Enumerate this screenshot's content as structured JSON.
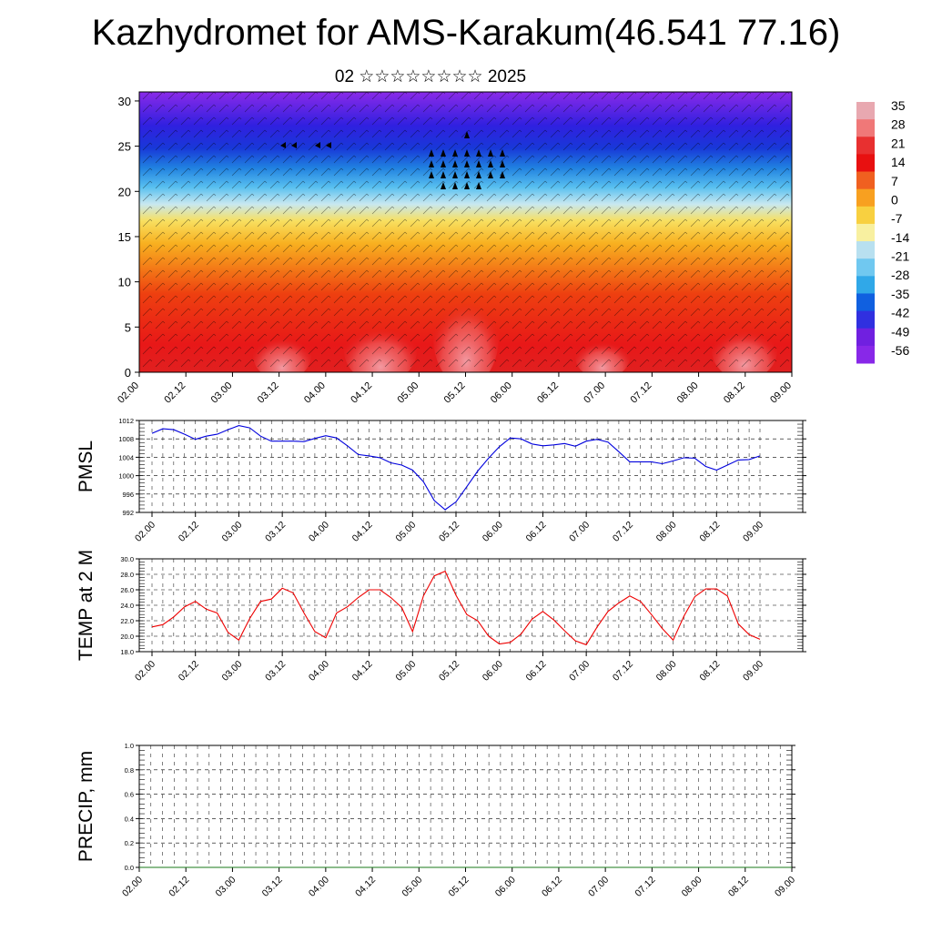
{
  "title": "Kazhydromet for AMS-Karakum(46.541 77.16)",
  "subtitle": "02 ☆☆☆☆☆☆☆☆ 2025",
  "colorbar": {
    "labels": [
      "35",
      "28",
      "21",
      "14",
      "7",
      "0",
      "-7",
      "-14",
      "-21",
      "-28",
      "-35",
      "-42",
      "-49",
      "-56"
    ],
    "colors": [
      "#e8a8b0",
      "#f07878",
      "#e83030",
      "#e81010",
      "#f06020",
      "#f8a020",
      "#f8d040",
      "#f8f0a0",
      "#b8e0f0",
      "#70c8f0",
      "#30a8e8",
      "#1060e0",
      "#3030e0",
      "#7020e0",
      "#8828e8"
    ]
  },
  "chart_data": [
    {
      "type": "heatmap",
      "name": "cross-section",
      "x_tick_labels": [
        "02.00",
        "02.12",
        "03.00",
        "03.12",
        "04.00",
        "04.12",
        "05.00",
        "05.12",
        "06.00",
        "06.12",
        "07.00",
        "07.12",
        "08.00",
        "08.12",
        "09.00"
      ],
      "y_tick_labels": [
        "0",
        "5",
        "10",
        "15",
        "20",
        "25",
        "30"
      ],
      "ylim": [
        0,
        31
      ],
      "field_legend_range": [
        -56,
        35
      ],
      "vectors": "wind barbs overlay"
    },
    {
      "type": "line",
      "name": "pmsl",
      "ylabel": "PMSL",
      "y_tick_labels": [
        "992",
        "996",
        "1000",
        "1004",
        "1008",
        "1012"
      ],
      "ylim": [
        992,
        1012
      ],
      "x_tick_labels": [
        "02.00",
        "02.12",
        "03.00",
        "03.12",
        "04.00",
        "04.12",
        "05.00",
        "05.12",
        "06.00",
        "06.12",
        "07.00",
        "07.12",
        "08.00",
        "08.12",
        "09.00"
      ],
      "color": "#0000dd",
      "values": [
        1009.2,
        1010.2,
        1010.0,
        1009.0,
        1007.9,
        1008.6,
        1009.0,
        1010.0,
        1010.9,
        1010.4,
        1008.6,
        1007.5,
        1007.5,
        1007.5,
        1007.4,
        1008.1,
        1008.7,
        1008.2,
        1006.5,
        1004.6,
        1004.3,
        1003.9,
        1002.8,
        1002.3,
        1001.2,
        998.7,
        994.6,
        992.6,
        994.3,
        997.6,
        1001.0,
        1003.8,
        1006.3,
        1008.2,
        1008.0,
        1006.9,
        1006.5,
        1006.7,
        1007.0,
        1006.4,
        1007.5,
        1007.9,
        1007.3,
        1005.2,
        1003.0,
        1003.0,
        1003.0,
        1002.6,
        1003.2,
        1003.9,
        1003.8,
        1002.0,
        1001.2,
        1002.3,
        1003.4,
        1003.5,
        1004.3
      ]
    },
    {
      "type": "line",
      "name": "temp2m",
      "ylabel": "TEMP at 2 M",
      "y_tick_labels": [
        "18.0",
        "20.0",
        "22.0",
        "24.0",
        "26.0",
        "28.0",
        "30.0"
      ],
      "ylim": [
        18,
        30
      ],
      "x_tick_labels": [
        "02.00",
        "02.12",
        "03.00",
        "03.12",
        "04.00",
        "04.12",
        "05.00",
        "05.12",
        "06.00",
        "06.12",
        "07.00",
        "07.12",
        "08.00",
        "08.12",
        "09.00"
      ],
      "color": "#ee0000",
      "values": [
        21.2,
        21.5,
        22.5,
        23.8,
        24.5,
        23.5,
        23.0,
        20.5,
        19.5,
        22.3,
        24.5,
        24.8,
        26.2,
        25.6,
        23.0,
        20.6,
        19.8,
        23.0,
        23.8,
        25.0,
        26.0,
        26.0,
        25.0,
        23.7,
        20.6,
        25.2,
        27.8,
        28.4,
        25.3,
        22.8,
        22.0,
        20.0,
        19.0,
        19.2,
        20.3,
        22.2,
        23.2,
        22.1,
        20.7,
        19.4,
        18.9,
        21.2,
        23.2,
        24.3,
        25.2,
        24.5,
        22.8,
        21.0,
        19.5,
        22.6,
        25.1,
        26.1,
        26.1,
        25.2,
        21.6,
        20.2,
        19.6
      ]
    },
    {
      "type": "line",
      "name": "precip",
      "ylabel": "PRECIP, mm",
      "y_tick_labels": [
        "0.0",
        "0.2",
        "0.4",
        "0.6",
        "0.8",
        "1.0"
      ],
      "ylim": [
        0,
        1
      ],
      "x_tick_labels": [
        "02.00",
        "02.12",
        "03.00",
        "03.12",
        "04.00",
        "04.12",
        "05.00",
        "05.12",
        "06.00",
        "06.12",
        "07.00",
        "07.12",
        "08.00",
        "08.12",
        "09.00"
      ],
      "color": "#1a7a1a",
      "values": [
        0,
        0,
        0,
        0,
        0,
        0,
        0,
        0,
        0,
        0,
        0,
        0,
        0,
        0,
        0,
        0,
        0,
        0,
        0,
        0,
        0,
        0,
        0,
        0,
        0,
        0,
        0,
        0,
        0,
        0,
        0,
        0,
        0,
        0,
        0,
        0,
        0,
        0,
        0,
        0,
        0,
        0,
        0,
        0,
        0,
        0,
        0,
        0,
        0,
        0,
        0,
        0,
        0,
        0,
        0,
        0,
        0,
        0,
        0,
        0,
        0,
        0,
        0,
        0,
        0,
        0,
        0,
        0,
        0,
        0,
        0,
        0,
        0,
        0,
        0,
        0,
        0,
        0,
        0,
        0,
        0,
        0,
        0,
        0,
        0
      ]
    }
  ]
}
